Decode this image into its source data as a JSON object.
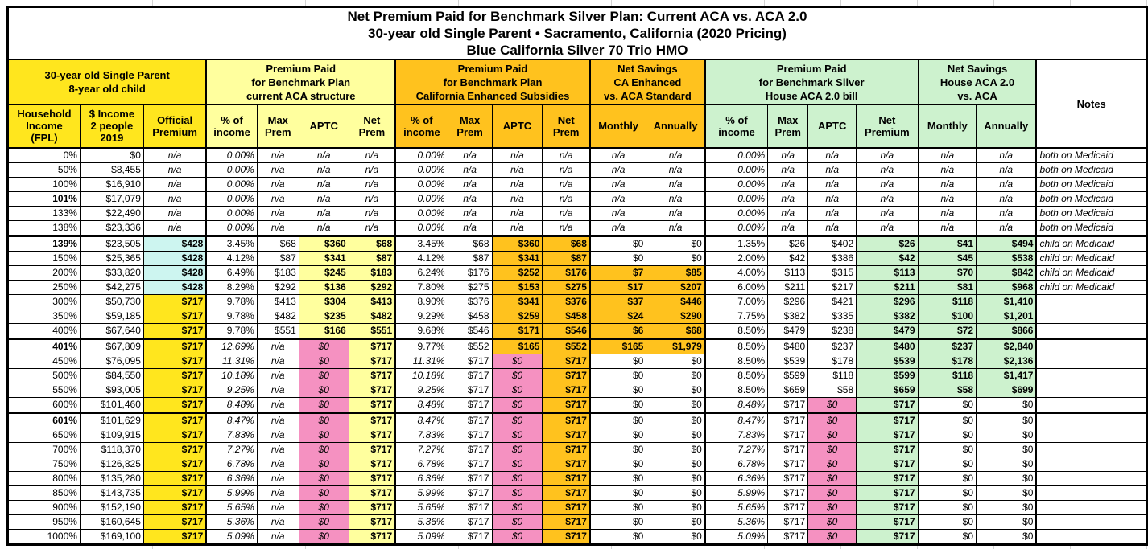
{
  "title": {
    "line1": "Net Premium Paid for Benchmark Silver Plan: Current ACA vs. ACA 2.0",
    "line2": "30-year old Single Parent • Sacramento, California (2020 Pricing)",
    "line3": "Blue California Silver 70 Trio HMO"
  },
  "colors": {
    "yellow": "#FFE61E",
    "light_yellow": "#FFFF9E",
    "orange": "#FFC21E",
    "green": "#CDF2CE",
    "cyan": "#CDF5F0",
    "pink": "#F591C1"
  },
  "chart_data": {
    "type": "table",
    "title": "Net Premium Paid for Benchmark Silver Plan: Current ACA vs. ACA 2.0 — 30-year old Single Parent • Sacramento, California (2020 Pricing) — Blue California Silver 70 Trio HMO",
    "notes_header": "Notes",
    "groups": [
      {
        "label": "30-year old Single Parent\n8-year old child",
        "color": "yellow",
        "sub": [
          "Household\nIncome\n(FPL)",
          "$ Income\n2 people\n2019",
          "Official\nPremium"
        ]
      },
      {
        "label": "Premium Paid\nfor Benchmark Plan\ncurrent ACA structure",
        "color": "light_yellow",
        "sub": [
          "% of\nincome",
          "Max\nPrem",
          "APTC",
          "Net\nPrem"
        ]
      },
      {
        "label": "Premium Paid\nfor Benchmark Plan\nCalifornia Enhanced Subsidies",
        "color": "orange",
        "sub": [
          "% of\nincome",
          "Max\nPrem",
          "APTC",
          "Net\nPrem"
        ]
      },
      {
        "label": "Net Savings\nCA Enhanced\nvs. ACA Standard",
        "color": "orange",
        "sub": [
          "Monthly",
          "Annually"
        ]
      },
      {
        "label": "Premium Paid\nfor Benchmark Silver\nHouse ACA 2.0 bill",
        "color": "green",
        "sub": [
          "% of\nincome",
          "Max\nPrem",
          "APTC",
          "Net\nPremium"
        ]
      },
      {
        "label": "Net Savings\nHouse ACA 2.0\nvs. ACA",
        "color": "green",
        "sub": [
          "Monthly",
          "Annually"
        ]
      }
    ],
    "column_keys": [
      "fpl",
      "income",
      "official-premium",
      "aca-pct-income",
      "aca-max-prem",
      "aca-aptc",
      "aca-net-prem",
      "ca-pct-income",
      "ca-max-prem",
      "ca-aptc",
      "ca-net-prem",
      "ca-savings-monthly",
      "ca-savings-annually",
      "house-pct-income",
      "house-max-prem",
      "house-aptc",
      "house-net-premium",
      "house-savings-monthly",
      "house-savings-annually",
      "notes"
    ],
    "bold_fpl_rows": [
      "101%",
      "139%",
      "401%",
      "601%"
    ],
    "section_break_above": [
      "139%",
      "401%",
      "601%"
    ],
    "rows": [
      [
        "0%",
        "$0",
        "n/a",
        "0.00%",
        "n/a",
        "n/a",
        "n/a",
        "0.00%",
        "n/a",
        "n/a",
        "n/a",
        "n/a",
        "n/a",
        "0.00%",
        "n/a",
        "n/a",
        "n/a",
        "n/a",
        "n/a",
        "both on Medicaid"
      ],
      [
        "50%",
        "$8,455",
        "n/a",
        "0.00%",
        "n/a",
        "n/a",
        "n/a",
        "0.00%",
        "n/a",
        "n/a",
        "n/a",
        "n/a",
        "n/a",
        "0.00%",
        "n/a",
        "n/a",
        "n/a",
        "n/a",
        "n/a",
        "both on Medicaid"
      ],
      [
        "100%",
        "$16,910",
        "n/a",
        "0.00%",
        "n/a",
        "n/a",
        "n/a",
        "0.00%",
        "n/a",
        "n/a",
        "n/a",
        "n/a",
        "n/a",
        "0.00%",
        "n/a",
        "n/a",
        "n/a",
        "n/a",
        "n/a",
        "both on Medicaid"
      ],
      [
        "101%",
        "$17,079",
        "n/a",
        "0.00%",
        "n/a",
        "n/a",
        "n/a",
        "0.00%",
        "n/a",
        "n/a",
        "n/a",
        "n/a",
        "n/a",
        "0.00%",
        "n/a",
        "n/a",
        "n/a",
        "n/a",
        "n/a",
        "both on Medicaid"
      ],
      [
        "133%",
        "$22,490",
        "n/a",
        "0.00%",
        "n/a",
        "n/a",
        "n/a",
        "0.00%",
        "n/a",
        "n/a",
        "n/a",
        "n/a",
        "n/a",
        "0.00%",
        "n/a",
        "n/a",
        "n/a",
        "n/a",
        "n/a",
        "both on Medicaid"
      ],
      [
        "138%",
        "$23,336",
        "n/a",
        "0.00%",
        "n/a",
        "n/a",
        "n/a",
        "0.00%",
        "n/a",
        "n/a",
        "n/a",
        "n/a",
        "n/a",
        "0.00%",
        "n/a",
        "n/a",
        "n/a",
        "n/a",
        "n/a",
        "both on Medicaid"
      ],
      [
        "139%",
        "$23,505",
        "$428",
        "3.45%",
        "$68",
        "$360",
        "$68",
        "3.45%",
        "$68",
        "$360",
        "$68",
        "$0",
        "$0",
        "1.35%",
        "$26",
        "$402",
        "$26",
        "$41",
        "$494",
        "child on Medicaid"
      ],
      [
        "150%",
        "$25,365",
        "$428",
        "4.12%",
        "$87",
        "$341",
        "$87",
        "4.12%",
        "$87",
        "$341",
        "$87",
        "$0",
        "$0",
        "2.00%",
        "$42",
        "$386",
        "$42",
        "$45",
        "$538",
        "child on Medicaid"
      ],
      [
        "200%",
        "$33,820",
        "$428",
        "6.49%",
        "$183",
        "$245",
        "$183",
        "6.24%",
        "$176",
        "$252",
        "$176",
        "$7",
        "$85",
        "4.00%",
        "$113",
        "$315",
        "$113",
        "$70",
        "$842",
        "child on Medicaid"
      ],
      [
        "250%",
        "$42,275",
        "$428",
        "8.29%",
        "$292",
        "$136",
        "$292",
        "7.80%",
        "$275",
        "$153",
        "$275",
        "$17",
        "$207",
        "6.00%",
        "$211",
        "$217",
        "$211",
        "$81",
        "$968",
        "child on Medicaid"
      ],
      [
        "300%",
        "$50,730",
        "$717",
        "9.78%",
        "$413",
        "$304",
        "$413",
        "8.90%",
        "$376",
        "$341",
        "$376",
        "$37",
        "$446",
        "7.00%",
        "$296",
        "$421",
        "$296",
        "$118",
        "$1,410",
        ""
      ],
      [
        "350%",
        "$59,185",
        "$717",
        "9.78%",
        "$482",
        "$235",
        "$482",
        "9.29%",
        "$458",
        "$259",
        "$458",
        "$24",
        "$290",
        "7.75%",
        "$382",
        "$335",
        "$382",
        "$100",
        "$1,201",
        ""
      ],
      [
        "400%",
        "$67,640",
        "$717",
        "9.78%",
        "$551",
        "$166",
        "$551",
        "9.68%",
        "$546",
        "$171",
        "$546",
        "$6",
        "$68",
        "8.50%",
        "$479",
        "$238",
        "$479",
        "$72",
        "$866",
        ""
      ],
      [
        "401%",
        "$67,809",
        "$717",
        "12.69%",
        "n/a",
        "$0",
        "$717",
        "9.77%",
        "$552",
        "$165",
        "$552",
        "$165",
        "$1,979",
        "8.50%",
        "$480",
        "$237",
        "$480",
        "$237",
        "$2,840",
        ""
      ],
      [
        "450%",
        "$76,095",
        "$717",
        "11.31%",
        "n/a",
        "$0",
        "$717",
        "11.31%",
        "$717",
        "$0",
        "$717",
        "$0",
        "$0",
        "8.50%",
        "$539",
        "$178",
        "$539",
        "$178",
        "$2,136",
        ""
      ],
      [
        "500%",
        "$84,550",
        "$717",
        "10.18%",
        "n/a",
        "$0",
        "$717",
        "10.18%",
        "$717",
        "$0",
        "$717",
        "$0",
        "$0",
        "8.50%",
        "$599",
        "$118",
        "$599",
        "$118",
        "$1,417",
        ""
      ],
      [
        "550%",
        "$93,005",
        "$717",
        "9.25%",
        "n/a",
        "$0",
        "$717",
        "9.25%",
        "$717",
        "$0",
        "$717",
        "$0",
        "$0",
        "8.50%",
        "$659",
        "$58",
        "$659",
        "$58",
        "$699",
        ""
      ],
      [
        "600%",
        "$101,460",
        "$717",
        "8.48%",
        "n/a",
        "$0",
        "$717",
        "8.48%",
        "$717",
        "$0",
        "$717",
        "$0",
        "$0",
        "8.48%",
        "$717",
        "$0",
        "$717",
        "$0",
        "$0",
        ""
      ],
      [
        "601%",
        "$101,629",
        "$717",
        "8.47%",
        "n/a",
        "$0",
        "$717",
        "8.47%",
        "$717",
        "$0",
        "$717",
        "$0",
        "$0",
        "8.47%",
        "$717",
        "$0",
        "$717",
        "$0",
        "$0",
        ""
      ],
      [
        "650%",
        "$109,915",
        "$717",
        "7.83%",
        "n/a",
        "$0",
        "$717",
        "7.83%",
        "$717",
        "$0",
        "$717",
        "$0",
        "$0",
        "7.83%",
        "$717",
        "$0",
        "$717",
        "$0",
        "$0",
        ""
      ],
      [
        "700%",
        "$118,370",
        "$717",
        "7.27%",
        "n/a",
        "$0",
        "$717",
        "7.27%",
        "$717",
        "$0",
        "$717",
        "$0",
        "$0",
        "7.27%",
        "$717",
        "$0",
        "$717",
        "$0",
        "$0",
        ""
      ],
      [
        "750%",
        "$126,825",
        "$717",
        "6.78%",
        "n/a",
        "$0",
        "$717",
        "6.78%",
        "$717",
        "$0",
        "$717",
        "$0",
        "$0",
        "6.78%",
        "$717",
        "$0",
        "$717",
        "$0",
        "$0",
        ""
      ],
      [
        "800%",
        "$135,280",
        "$717",
        "6.36%",
        "n/a",
        "$0",
        "$717",
        "6.36%",
        "$717",
        "$0",
        "$717",
        "$0",
        "$0",
        "6.36%",
        "$717",
        "$0",
        "$717",
        "$0",
        "$0",
        ""
      ],
      [
        "850%",
        "$143,735",
        "$717",
        "5.99%",
        "n/a",
        "$0",
        "$717",
        "5.99%",
        "$717",
        "$0",
        "$717",
        "$0",
        "$0",
        "5.99%",
        "$717",
        "$0",
        "$717",
        "$0",
        "$0",
        ""
      ],
      [
        "900%",
        "$152,190",
        "$717",
        "5.65%",
        "n/a",
        "$0",
        "$717",
        "5.65%",
        "$717",
        "$0",
        "$717",
        "$0",
        "$0",
        "5.65%",
        "$717",
        "$0",
        "$717",
        "$0",
        "$0",
        ""
      ],
      [
        "950%",
        "$160,645",
        "$717",
        "5.36%",
        "n/a",
        "$0",
        "$717",
        "5.36%",
        "$717",
        "$0",
        "$717",
        "$0",
        "$0",
        "5.36%",
        "$717",
        "$0",
        "$717",
        "$0",
        "$0",
        ""
      ],
      [
        "1000%",
        "$169,100",
        "$717",
        "5.09%",
        "n/a",
        "$0",
        "$717",
        "5.09%",
        "$717",
        "$0",
        "$717",
        "$0",
        "$0",
        "5.09%",
        "$717",
        "$0",
        "$717",
        "$0",
        "$0",
        ""
      ]
    ]
  }
}
